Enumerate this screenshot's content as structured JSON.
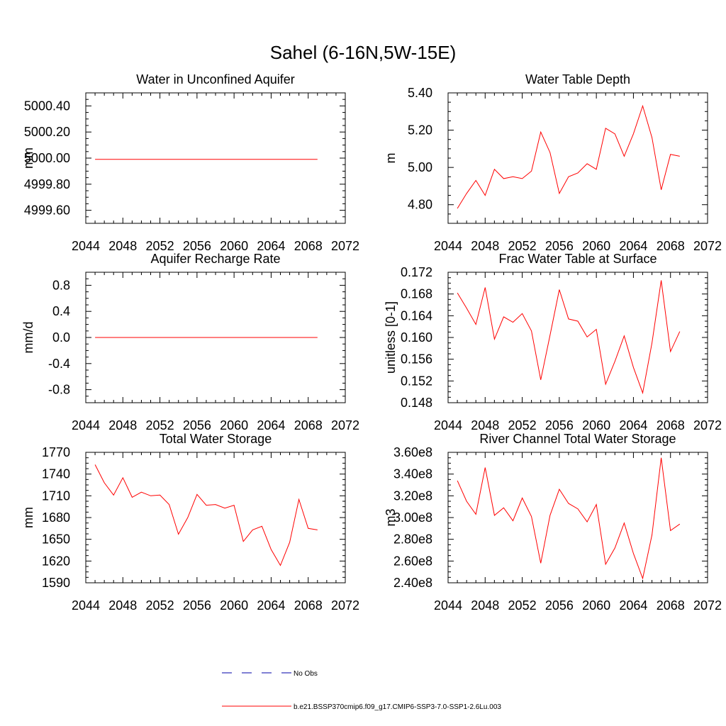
{
  "figure": {
    "title": "Sahel (6-16N,5W-15E)",
    "colors": {
      "model": "#ff0000",
      "obs": "#0000aa"
    },
    "legend": [
      {
        "label": "No Obs",
        "style": "dashed",
        "color": "#0000aa"
      },
      {
        "label": "b.e21.BSSP370cmip6.f09_g17.CMIP6-SSP3-7.0-SSP1-2.6Lu.003",
        "style": "solid",
        "color": "#ff0000"
      }
    ]
  },
  "chart_data": [
    {
      "type": "line",
      "title": "Water in Unconfined Aquifer",
      "ylabel": "mm",
      "xlim": [
        2044,
        2072
      ],
      "ylim": [
        4999.5,
        5000.5
      ],
      "xticks": [
        2044,
        2048,
        2052,
        2056,
        2060,
        2064,
        2068,
        2072
      ],
      "yticks": [
        "4999.60",
        "4999.80",
        "5000.00",
        "5000.20",
        "5000.40"
      ],
      "x": [
        2045,
        2046,
        2047,
        2048,
        2049,
        2050,
        2051,
        2052,
        2053,
        2054,
        2055,
        2056,
        2057,
        2058,
        2059,
        2060,
        2061,
        2062,
        2063,
        2064,
        2065,
        2066,
        2067,
        2068,
        2069
      ],
      "series": [
        {
          "values": [
            4999.99,
            4999.99,
            4999.99,
            4999.99,
            4999.99,
            4999.99,
            4999.99,
            4999.99,
            4999.99,
            4999.99,
            4999.99,
            4999.99,
            4999.99,
            4999.99,
            4999.99,
            4999.99,
            4999.99,
            4999.99,
            4999.99,
            4999.99,
            4999.99,
            4999.99,
            4999.99,
            4999.99,
            4999.99
          ]
        }
      ]
    },
    {
      "type": "line",
      "title": "Water Table Depth",
      "ylabel": "m",
      "xlim": [
        2044,
        2072
      ],
      "ylim": [
        4.7,
        5.4
      ],
      "xticks": [
        2044,
        2048,
        2052,
        2056,
        2060,
        2064,
        2068,
        2072
      ],
      "yticks": [
        "4.80",
        "5.00",
        "5.20",
        "5.40"
      ],
      "x": [
        2045,
        2046,
        2047,
        2048,
        2049,
        2050,
        2051,
        2052,
        2053,
        2054,
        2055,
        2056,
        2057,
        2058,
        2059,
        2060,
        2061,
        2062,
        2063,
        2064,
        2065,
        2066,
        2067,
        2068,
        2069
      ],
      "series": [
        {
          "values": [
            4.78,
            4.86,
            4.93,
            4.85,
            4.99,
            4.94,
            4.95,
            4.94,
            4.98,
            5.19,
            5.08,
            4.86,
            4.95,
            4.97,
            5.02,
            4.99,
            5.21,
            5.18,
            5.06,
            5.18,
            5.33,
            5.16,
            4.88,
            5.07,
            5.06
          ]
        }
      ]
    },
    {
      "type": "line",
      "title": "Aquifer Recharge Rate",
      "ylabel": "mm/d",
      "xlim": [
        2044,
        2072
      ],
      "ylim": [
        -1.0,
        1.0
      ],
      "xticks": [
        2044,
        2048,
        2052,
        2056,
        2060,
        2064,
        2068,
        2072
      ],
      "yticks": [
        "-0.8",
        "-0.4",
        "0.0",
        "0.4",
        "0.8"
      ],
      "x": [
        2045,
        2046,
        2047,
        2048,
        2049,
        2050,
        2051,
        2052,
        2053,
        2054,
        2055,
        2056,
        2057,
        2058,
        2059,
        2060,
        2061,
        2062,
        2063,
        2064,
        2065,
        2066,
        2067,
        2068,
        2069
      ],
      "series": [
        {
          "values": [
            0,
            0,
            0,
            0,
            0,
            0,
            0,
            0,
            0,
            0,
            0,
            0,
            0,
            0,
            0,
            0,
            0,
            0,
            0,
            0,
            0,
            0,
            0,
            0,
            0
          ]
        }
      ]
    },
    {
      "type": "line",
      "title": "Frac Water Table at Surface",
      "ylabel": "unitless [0-1]",
      "xlim": [
        2044,
        2072
      ],
      "ylim": [
        0.148,
        0.172
      ],
      "xticks": [
        2044,
        2048,
        2052,
        2056,
        2060,
        2064,
        2068,
        2072
      ],
      "yticks": [
        "0.148",
        "0.152",
        "0.156",
        "0.160",
        "0.164",
        "0.168",
        "0.172"
      ],
      "x": [
        2045,
        2046,
        2047,
        2048,
        2049,
        2050,
        2051,
        2052,
        2053,
        2054,
        2055,
        2056,
        2057,
        2058,
        2059,
        2060,
        2061,
        2062,
        2063,
        2064,
        2065,
        2066,
        2067,
        2068,
        2069
      ],
      "series": [
        {
          "values": [
            0.1682,
            0.1654,
            0.1624,
            0.1692,
            0.1597,
            0.1638,
            0.1628,
            0.1644,
            0.1612,
            0.1522,
            0.1604,
            0.1688,
            0.1634,
            0.163,
            0.1601,
            0.1615,
            0.1514,
            0.1556,
            0.1603,
            0.1545,
            0.1498,
            0.159,
            0.1705,
            0.1574,
            0.1611
          ]
        }
      ]
    },
    {
      "type": "line",
      "title": "Total Water Storage",
      "ylabel": "mm",
      "xlim": [
        2044,
        2072
      ],
      "ylim": [
        1590,
        1770
      ],
      "xticks": [
        2044,
        2048,
        2052,
        2056,
        2060,
        2064,
        2068,
        2072
      ],
      "yticks": [
        "1590",
        "1620",
        "1650",
        "1680",
        "1710",
        "1740",
        "1770"
      ],
      "x": [
        2045,
        2046,
        2047,
        2048,
        2049,
        2050,
        2051,
        2052,
        2053,
        2054,
        2055,
        2056,
        2057,
        2058,
        2059,
        2060,
        2061,
        2062,
        2063,
        2064,
        2065,
        2066,
        2067,
        2068,
        2069
      ],
      "series": [
        {
          "values": [
            1753,
            1728,
            1711,
            1735,
            1708,
            1715,
            1710,
            1711,
            1698,
            1657,
            1680,
            1712,
            1697,
            1698,
            1693,
            1697,
            1647,
            1663,
            1668,
            1636,
            1614,
            1646,
            1705,
            1665,
            1663
          ]
        }
      ]
    },
    {
      "type": "line",
      "title": "River Channel Total Water Storage",
      "ylabel": "m3",
      "xlim": [
        2044,
        2072
      ],
      "ylim": [
        240000000,
        360000000
      ],
      "xticks": [
        2044,
        2048,
        2052,
        2056,
        2060,
        2064,
        2068,
        2072
      ],
      "yticks": [
        "2.40e8",
        "2.60e8",
        "2.80e8",
        "3.00e8",
        "3.20e8",
        "3.40e8",
        "3.60e8"
      ],
      "x": [
        2045,
        2046,
        2047,
        2048,
        2049,
        2050,
        2051,
        2052,
        2053,
        2054,
        2055,
        2056,
        2057,
        2058,
        2059,
        2060,
        2061,
        2062,
        2063,
        2064,
        2065,
        2066,
        2067,
        2068,
        2069
      ],
      "series": [
        {
          "values": [
            334000000,
            315000000,
            303000000,
            346000000,
            302000000,
            309000000,
            297000000,
            318000000,
            301000000,
            258000000,
            302000000,
            326000000,
            313000000,
            308000000,
            296000000,
            312000000,
            257000000,
            272000000,
            295000000,
            267000000,
            244000000,
            284000000,
            355000000,
            288000000,
            294000000
          ]
        }
      ]
    }
  ]
}
